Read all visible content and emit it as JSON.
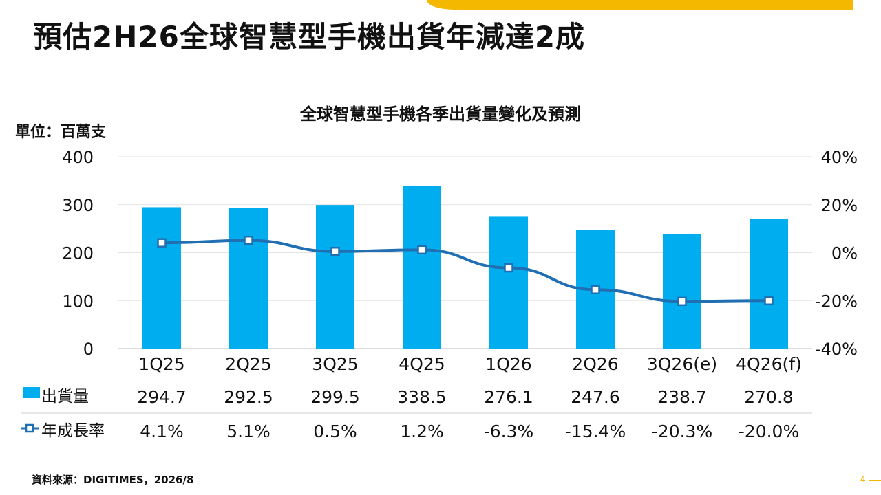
{
  "slide": {
    "title": "預估2H26全球智慧型手機出貨年減達2成",
    "source": "資料來源：DIGITIMES，2026/8",
    "page_number": "4"
  },
  "chart_data": {
    "type": "bar",
    "title": "全球智慧型手機各季出貨量變化及預測",
    "unit_label": "單位：百萬支",
    "categories": [
      "1Q25",
      "2Q25",
      "3Q25",
      "4Q25",
      "1Q26",
      "2Q26",
      "3Q26(e)",
      "4Q26(f)"
    ],
    "series": [
      {
        "name": "出貨量",
        "type": "bar",
        "axis": "left",
        "values": [
          294.7,
          292.5,
          299.5,
          338.5,
          276.1,
          247.6,
          238.7,
          270.8
        ],
        "labels": [
          "294.7",
          "292.5",
          "299.5",
          "338.5",
          "276.1",
          "247.6",
          "238.7",
          "270.8"
        ],
        "color": "#00aeef"
      },
      {
        "name": "年成長率",
        "type": "line",
        "axis": "right",
        "values": [
          4.1,
          5.1,
          0.5,
          1.2,
          -6.3,
          -15.4,
          -20.3,
          -20.0
        ],
        "labels": [
          "4.1%",
          "5.1%",
          "0.5%",
          "1.2%",
          "-6.3%",
          "-15.4%",
          "-20.3%",
          "-20.0%"
        ],
        "color": "#1f6fb2"
      }
    ],
    "left_axis": {
      "ylim": [
        0,
        400
      ],
      "ticks": [
        "0",
        "100",
        "200",
        "300",
        "400"
      ],
      "tick_values": [
        0,
        100,
        200,
        300,
        400
      ]
    },
    "right_axis": {
      "ylim": [
        -40,
        40
      ],
      "ticks": [
        "-40%",
        "-20%",
        "0%",
        "20%",
        "40%"
      ],
      "tick_values": [
        -40,
        -20,
        0,
        20,
        40
      ]
    },
    "grid": true,
    "legend": "data-table below chart"
  }
}
